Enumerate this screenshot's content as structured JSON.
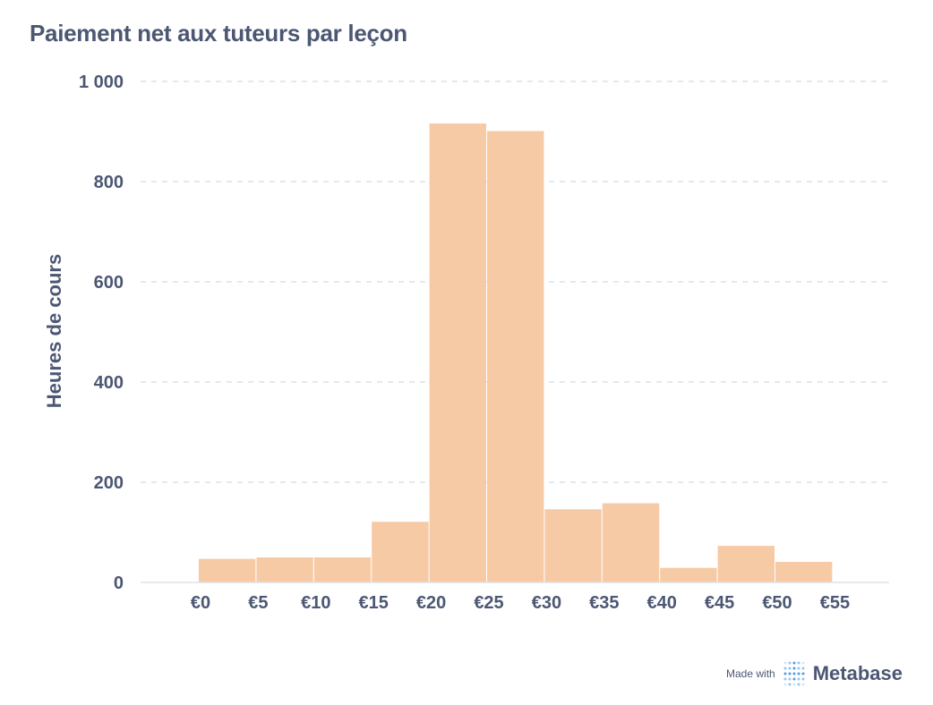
{
  "title": "Paiement net aux tuteurs par leçon",
  "footer": {
    "made_with": "Made with",
    "brand": "Metabase",
    "logo_icon": "metabase-logo-icon"
  },
  "colors": {
    "bar": "#f7caa6",
    "text": "#4c5773",
    "grid": "#e6e8ec",
    "logo": "#509ee3"
  },
  "chart_data": {
    "type": "bar",
    "variant": "histogram",
    "title": "Paiement net aux tuteurs par leçon",
    "xlabel": "",
    "ylabel": "Heures de cours",
    "x_tick_labels": [
      "€0",
      "€5",
      "€10",
      "€15",
      "€20",
      "€25",
      "€30",
      "€35",
      "€40",
      "€45",
      "€50",
      "€55"
    ],
    "bins": [
      {
        "from": 0,
        "to": 5,
        "value": 47
      },
      {
        "from": 5,
        "to": 10,
        "value": 50
      },
      {
        "from": 10,
        "to": 15,
        "value": 50
      },
      {
        "from": 15,
        "to": 20,
        "value": 121
      },
      {
        "from": 20,
        "to": 25,
        "value": 916
      },
      {
        "from": 25,
        "to": 30,
        "value": 901
      },
      {
        "from": 30,
        "to": 35,
        "value": 146
      },
      {
        "from": 35,
        "to": 40,
        "value": 158
      },
      {
        "from": 40,
        "to": 45,
        "value": 29
      },
      {
        "from": 45,
        "to": 50,
        "value": 73
      },
      {
        "from": 50,
        "to": 55,
        "value": 41
      }
    ],
    "y_ticks": [
      0,
      200,
      400,
      600,
      800,
      1000
    ],
    "y_tick_labels": [
      "0",
      "200",
      "400",
      "600",
      "800",
      "1 000"
    ],
    "ylim": [
      0,
      1000
    ],
    "grid": true,
    "legend": false
  }
}
